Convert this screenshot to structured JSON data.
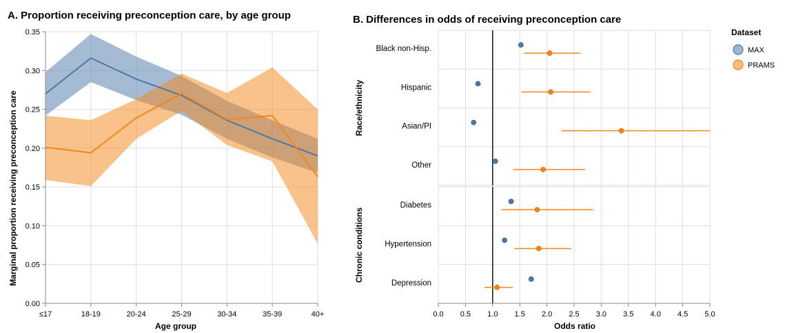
{
  "colors": {
    "max": "#4c78a8",
    "prams": "#f58518",
    "grid": "#dddddd"
  },
  "chart_data": [
    {
      "type": "line",
      "title": "A. Proportion receiving preconception care, by age group",
      "xlabel": "Age group",
      "ylabel": "Marginal proportion receiving preconception care",
      "categories": [
        "≤17",
        "18-19",
        "20-24",
        "25-29",
        "30-34",
        "35-39",
        "40+"
      ],
      "ylim": [
        0,
        0.35
      ],
      "yticks": [
        "0.00",
        "0.05",
        "0.10",
        "0.15",
        "0.20",
        "0.25",
        "0.30",
        "0.35"
      ],
      "grid": true,
      "series": [
        {
          "name": "MAX",
          "values": [
            0.27,
            0.316,
            0.289,
            0.268,
            0.236,
            0.212,
            0.19
          ],
          "lower": [
            0.242,
            0.285,
            0.262,
            0.243,
            0.212,
            0.188,
            0.168
          ],
          "upper": [
            0.298,
            0.347,
            0.318,
            0.293,
            0.261,
            0.236,
            0.212
          ]
        },
        {
          "name": "PRAMS",
          "values": [
            0.201,
            0.194,
            0.239,
            0.27,
            0.237,
            0.242,
            0.163
          ],
          "lower": [
            0.159,
            0.151,
            0.212,
            0.248,
            0.204,
            0.183,
            0.077
          ],
          "upper": [
            0.242,
            0.236,
            0.263,
            0.296,
            0.271,
            0.304,
            0.25
          ]
        }
      ]
    },
    {
      "type": "scatter",
      "title": "B. Differences in odds of receiving preconception care",
      "xlabel": "Odds ratio",
      "xlim": [
        0,
        5
      ],
      "xticks": [
        "0.0",
        "0.5",
        "1.0",
        "1.5",
        "2.0",
        "2.5",
        "3.0",
        "3.5",
        "4.0",
        "4.5",
        "5.0"
      ],
      "reference_line": 1.0,
      "grid": true,
      "groups": [
        {
          "label": "Race/ethnicity",
          "rows": [
            {
              "label": "Black non-Hisp.",
              "max": {
                "or": 1.52,
                "lo": 1.49,
                "hi": 1.55
              },
              "prams": {
                "or": 2.05,
                "lo": 1.58,
                "hi": 2.62
              }
            },
            {
              "label": "Hispanic",
              "max": {
                "or": 0.73,
                "lo": 0.71,
                "hi": 0.75
              },
              "prams": {
                "or": 2.07,
                "lo": 1.53,
                "hi": 2.8
              }
            },
            {
              "label": "Asian/PI",
              "max": {
                "or": 0.65,
                "lo": 0.62,
                "hi": 0.68
              },
              "prams": {
                "or": 3.37,
                "lo": 2.27,
                "hi": 5.0
              }
            },
            {
              "label": "Other",
              "max": {
                "or": 1.05,
                "lo": 1.02,
                "hi": 1.08
              },
              "prams": {
                "or": 1.93,
                "lo": 1.38,
                "hi": 2.7
              }
            }
          ]
        },
        {
          "label": "Chronic conditions",
          "rows": [
            {
              "label": "Diabetes",
              "max": {
                "or": 1.34,
                "lo": 1.29,
                "hi": 1.39
              },
              "prams": {
                "or": 1.82,
                "lo": 1.16,
                "hi": 2.85
              }
            },
            {
              "label": "Hypertension",
              "max": {
                "or": 1.22,
                "lo": 1.19,
                "hi": 1.25
              },
              "prams": {
                "or": 1.85,
                "lo": 1.4,
                "hi": 2.45
              }
            },
            {
              "label": "Depression",
              "max": {
                "or": 1.71,
                "lo": 1.67,
                "hi": 1.75
              },
              "prams": {
                "or": 1.08,
                "lo": 0.85,
                "hi": 1.37
              }
            }
          ]
        }
      ]
    }
  ],
  "legend": {
    "title": "Dataset",
    "placement": "right",
    "items": [
      {
        "label": "MAX",
        "color": "#4c78a8"
      },
      {
        "label": "PRAMS",
        "color": "#f58518"
      }
    ]
  }
}
